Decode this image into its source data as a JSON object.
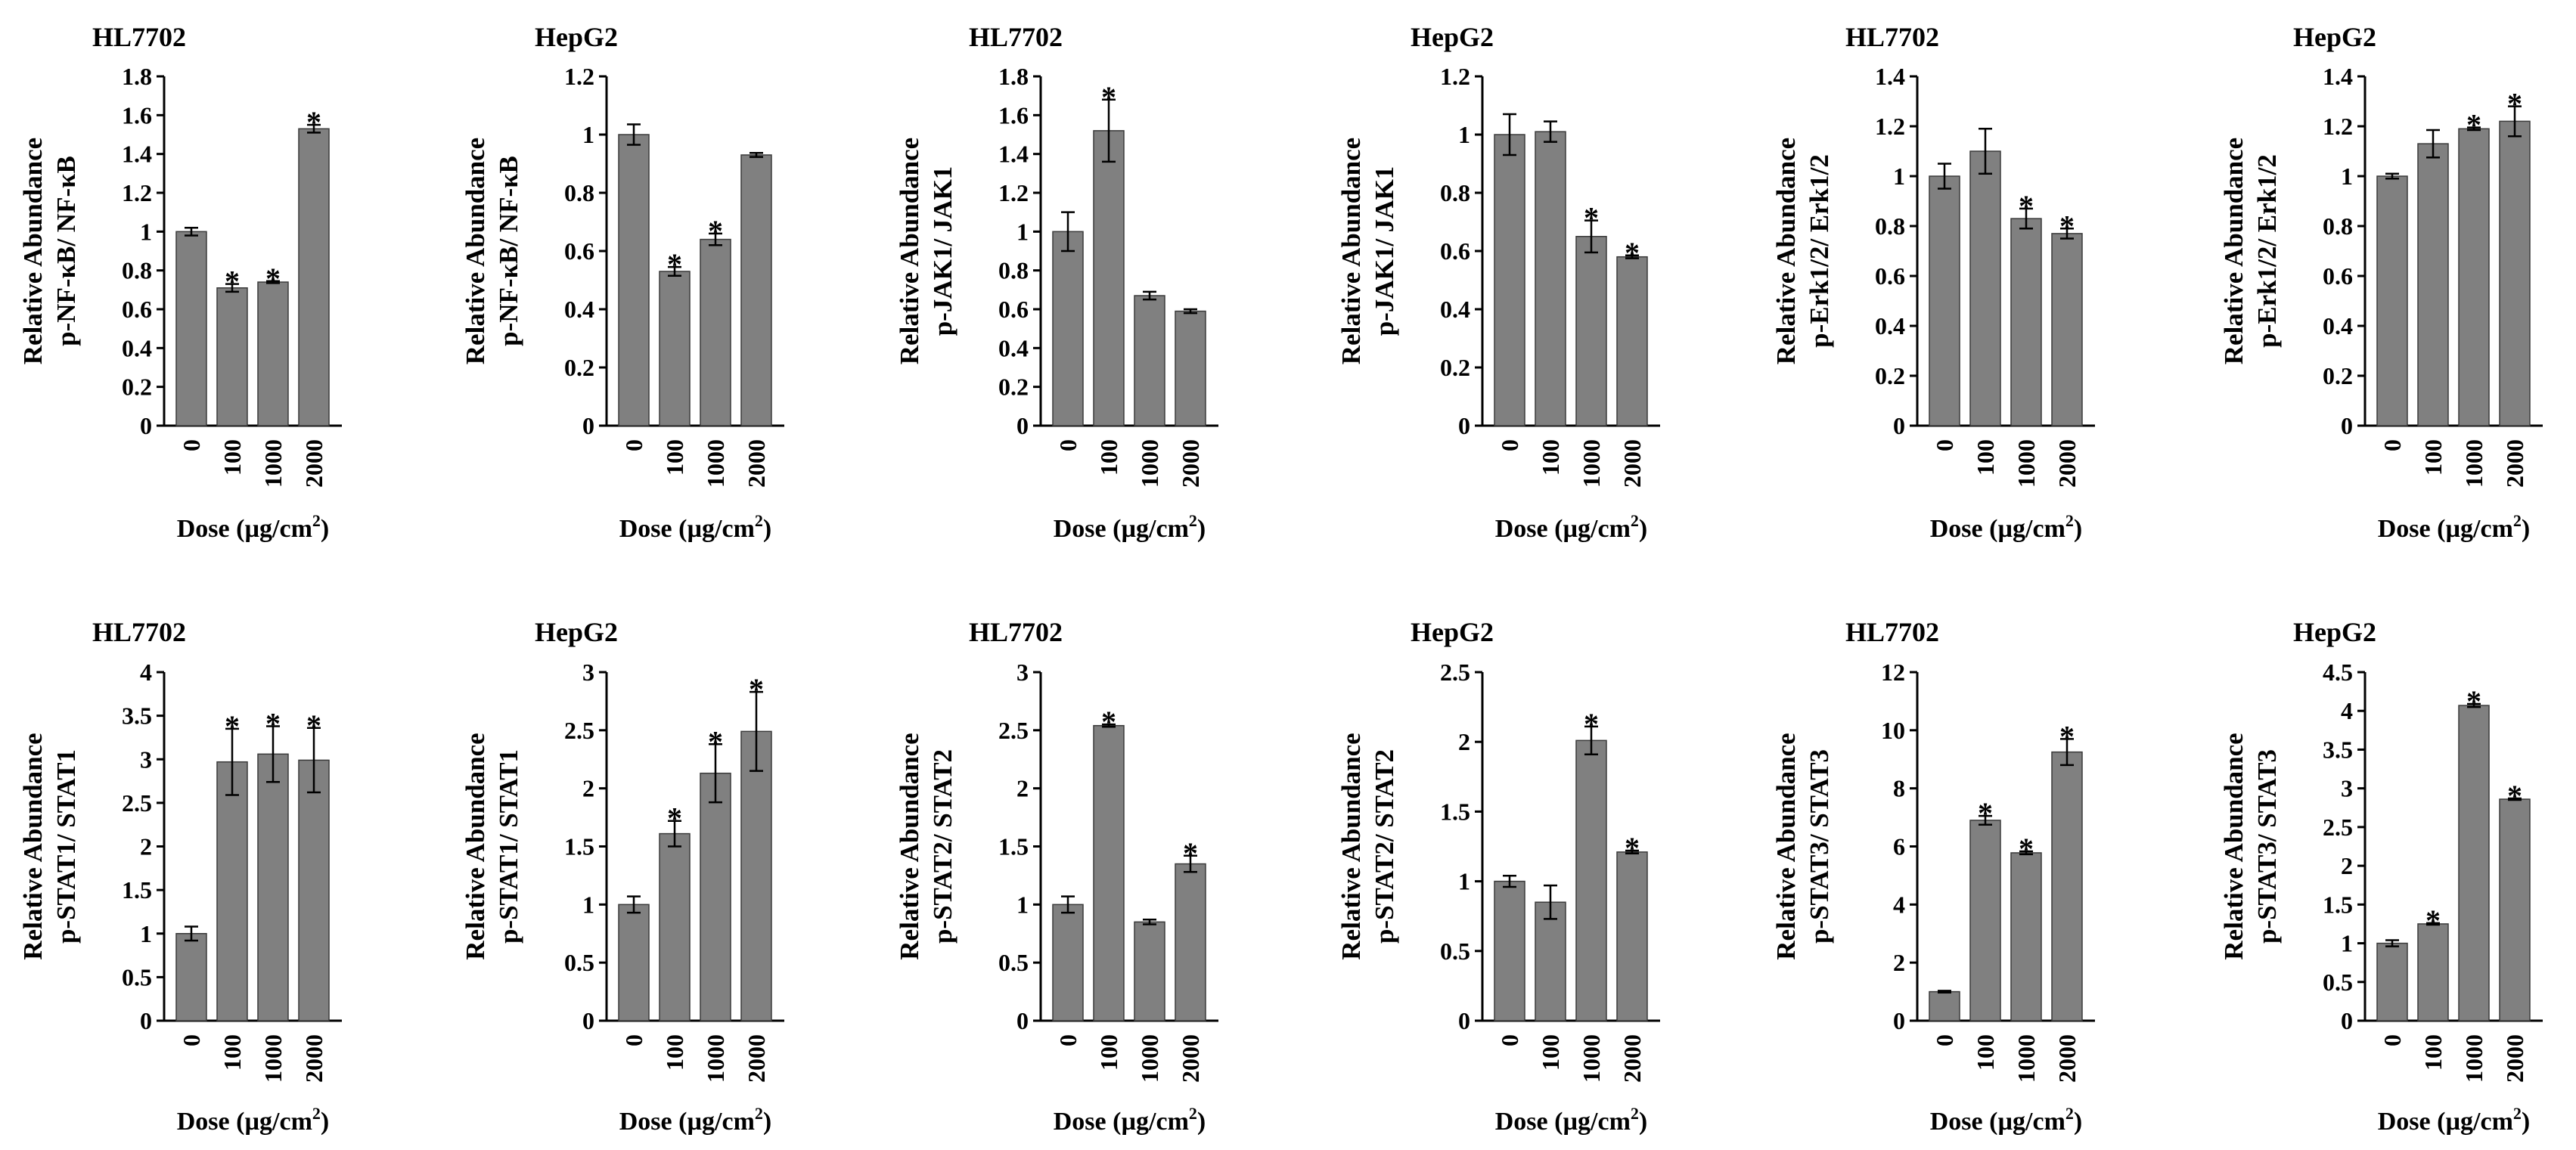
{
  "figure": {
    "xlabel": "Dose (µg/cm",
    "xlabel_sup": "2",
    "xlabel_close": ")",
    "ylabel_line1": "Relative Abundance",
    "significance_marker": "*",
    "categories": [
      "0",
      "100",
      "1000",
      "2000"
    ]
  },
  "colors": {
    "bar": "#808080",
    "bar_edge": "#3a3a3a",
    "axis": "#000000",
    "text": "#000000"
  },
  "chart_data": [
    {
      "type": "bar",
      "title": "HL7702",
      "ylabel": "p-NF-κB/ NF-κB",
      "categories": [
        "0",
        "100",
        "1000",
        "2000"
      ],
      "values": [
        1.0,
        0.71,
        0.74,
        1.53
      ],
      "errors": [
        0.02,
        0.02,
        0.005,
        0.02
      ],
      "significant": [
        false,
        true,
        true,
        true
      ],
      "ylim": [
        0,
        1.8
      ],
      "ytick_labels": [
        "0",
        "0.2",
        "0.4",
        "0.6",
        "0.8",
        "1",
        "1.2",
        "1.4",
        "1.6",
        "1.8"
      ]
    },
    {
      "type": "bar",
      "title": "HepG2",
      "ylabel": "p-NF-κB/ NF-κB",
      "categories": [
        "0",
        "100",
        "1000",
        "2000"
      ],
      "values": [
        1.0,
        0.53,
        0.64,
        0.93
      ],
      "errors": [
        0.035,
        0.015,
        0.02,
        0.007
      ],
      "significant": [
        false,
        true,
        true,
        false
      ],
      "ylim": [
        0,
        1.2
      ],
      "ytick_labels": [
        "0",
        "0.2",
        "0.4",
        "0.6",
        "0.8",
        "1",
        "1.2"
      ]
    },
    {
      "type": "bar",
      "title": "HL7702",
      "ylabel": "p-JAK1/ JAK1",
      "categories": [
        "0",
        "100",
        "1000",
        "2000"
      ],
      "values": [
        1.0,
        1.52,
        0.67,
        0.59
      ],
      "errors": [
        0.1,
        0.16,
        0.02,
        0.01
      ],
      "significant": [
        false,
        true,
        false,
        false
      ],
      "ylim": [
        0,
        1.8
      ],
      "ytick_labels": [
        "0",
        "0.2",
        "0.4",
        "0.6",
        "0.8",
        "1",
        "1.2",
        "1.4",
        "1.6",
        "1.8"
      ]
    },
    {
      "type": "bar",
      "title": "HepG2",
      "ylabel": "p-JAK1/ JAK1",
      "categories": [
        "0",
        "100",
        "1000",
        "2000"
      ],
      "values": [
        1.0,
        1.01,
        0.65,
        0.58
      ],
      "errors": [
        0.07,
        0.035,
        0.055,
        0.005
      ],
      "significant": [
        false,
        false,
        true,
        true
      ],
      "ylim": [
        0,
        1.2
      ],
      "ytick_labels": [
        "0",
        "0.2",
        "0.4",
        "0.6",
        "0.8",
        "1",
        "1.2"
      ]
    },
    {
      "type": "bar",
      "title": "HL7702",
      "ylabel": "p-Erk1/2/ Erk1/2",
      "categories": [
        "0",
        "100",
        "1000",
        "2000"
      ],
      "values": [
        1.0,
        1.1,
        0.83,
        0.77
      ],
      "errors": [
        0.05,
        0.09,
        0.04,
        0.02
      ],
      "significant": [
        false,
        false,
        true,
        true
      ],
      "ylim": [
        0,
        1.4
      ],
      "ytick_labels": [
        "0",
        "0.2",
        "0.4",
        "0.6",
        "0.8",
        "1",
        "1.2",
        "1.4"
      ]
    },
    {
      "type": "bar",
      "title": "HepG2",
      "ylabel": "p-Erk1/2/ Erk1/2",
      "categories": [
        "0",
        "100",
        "1000",
        "2000"
      ],
      "values": [
        1.0,
        1.13,
        1.19,
        1.22
      ],
      "errors": [
        0.01,
        0.055,
        0.005,
        0.06
      ],
      "significant": [
        false,
        false,
        true,
        true
      ],
      "ylim": [
        0,
        1.4
      ],
      "ytick_labels": [
        "0",
        "0.2",
        "0.4",
        "0.6",
        "0.8",
        "1",
        "1.2",
        "1.4"
      ]
    },
    {
      "type": "bar",
      "title": "HL7702",
      "ylabel": "p-STAT1/ STAT1",
      "categories": [
        "0",
        "100",
        "1000",
        "2000"
      ],
      "values": [
        1.0,
        2.97,
        3.06,
        2.99
      ],
      "errors": [
        0.08,
        0.38,
        0.32,
        0.37
      ],
      "significant": [
        false,
        true,
        true,
        true
      ],
      "ylim": [
        0,
        4
      ],
      "ytick_labels": [
        "0",
        "0.5",
        "1",
        "1.5",
        "2",
        "2.5",
        "3",
        "3.5",
        "4"
      ]
    },
    {
      "type": "bar",
      "title": "HepG2",
      "ylabel": "p-STAT1/ STAT1",
      "categories": [
        "0",
        "100",
        "1000",
        "2000"
      ],
      "values": [
        1.0,
        1.61,
        2.13,
        2.49
      ],
      "errors": [
        0.07,
        0.11,
        0.25,
        0.34
      ],
      "significant": [
        false,
        true,
        true,
        true
      ],
      "ylim": [
        0,
        3
      ],
      "ytick_labels": [
        "0",
        "0.5",
        "1",
        "1.5",
        "2",
        "2.5",
        "3"
      ]
    },
    {
      "type": "bar",
      "title": "HL7702",
      "ylabel": "p-STAT2/ STAT2",
      "categories": [
        "0",
        "100",
        "1000",
        "2000"
      ],
      "values": [
        1.0,
        2.54,
        0.85,
        1.35
      ],
      "errors": [
        0.07,
        0.01,
        0.02,
        0.07
      ],
      "significant": [
        false,
        true,
        false,
        true
      ],
      "ylim": [
        0,
        3
      ],
      "ytick_labels": [
        "0",
        "0.5",
        "1",
        "1.5",
        "2",
        "2.5",
        "3"
      ]
    },
    {
      "type": "bar",
      "title": "HepG2",
      "ylabel": "p-STAT2/ STAT2",
      "categories": [
        "0",
        "100",
        "1000",
        "2000"
      ],
      "values": [
        1.0,
        0.85,
        2.01,
        1.21
      ],
      "errors": [
        0.04,
        0.12,
        0.1,
        0.01
      ],
      "significant": [
        false,
        false,
        true,
        true
      ],
      "ylim": [
        0,
        2.5
      ],
      "ytick_labels": [
        "0",
        "0.5",
        "1",
        "1.5",
        "2",
        "2.5"
      ]
    },
    {
      "type": "bar",
      "title": "HL7702",
      "ylabel": "p-STAT3/ STAT3",
      "categories": [
        "0",
        "100",
        "1000",
        "2000"
      ],
      "values": [
        1.0,
        6.9,
        5.78,
        9.25
      ],
      "errors": [
        0.03,
        0.15,
        0.05,
        0.45
      ],
      "significant": [
        false,
        true,
        true,
        true
      ],
      "ylim": [
        0,
        12
      ],
      "ytick_labels": [
        "0",
        "2",
        "4",
        "6",
        "8",
        "10",
        "12"
      ]
    },
    {
      "type": "bar",
      "title": "HepG2",
      "ylabel": "p-STAT3/ STAT3",
      "categories": [
        "0",
        "100",
        "1000",
        "2000"
      ],
      "values": [
        1.0,
        1.25,
        4.07,
        2.86
      ],
      "errors": [
        0.04,
        0.01,
        0.02,
        0.01
      ],
      "significant": [
        false,
        true,
        true,
        true
      ],
      "ylim": [
        0,
        4.5
      ],
      "ytick_labels": [
        "0",
        "0.5",
        "1",
        "1.5",
        "2",
        "2.5",
        "3",
        "3.5",
        "4",
        "4.5"
      ]
    }
  ]
}
